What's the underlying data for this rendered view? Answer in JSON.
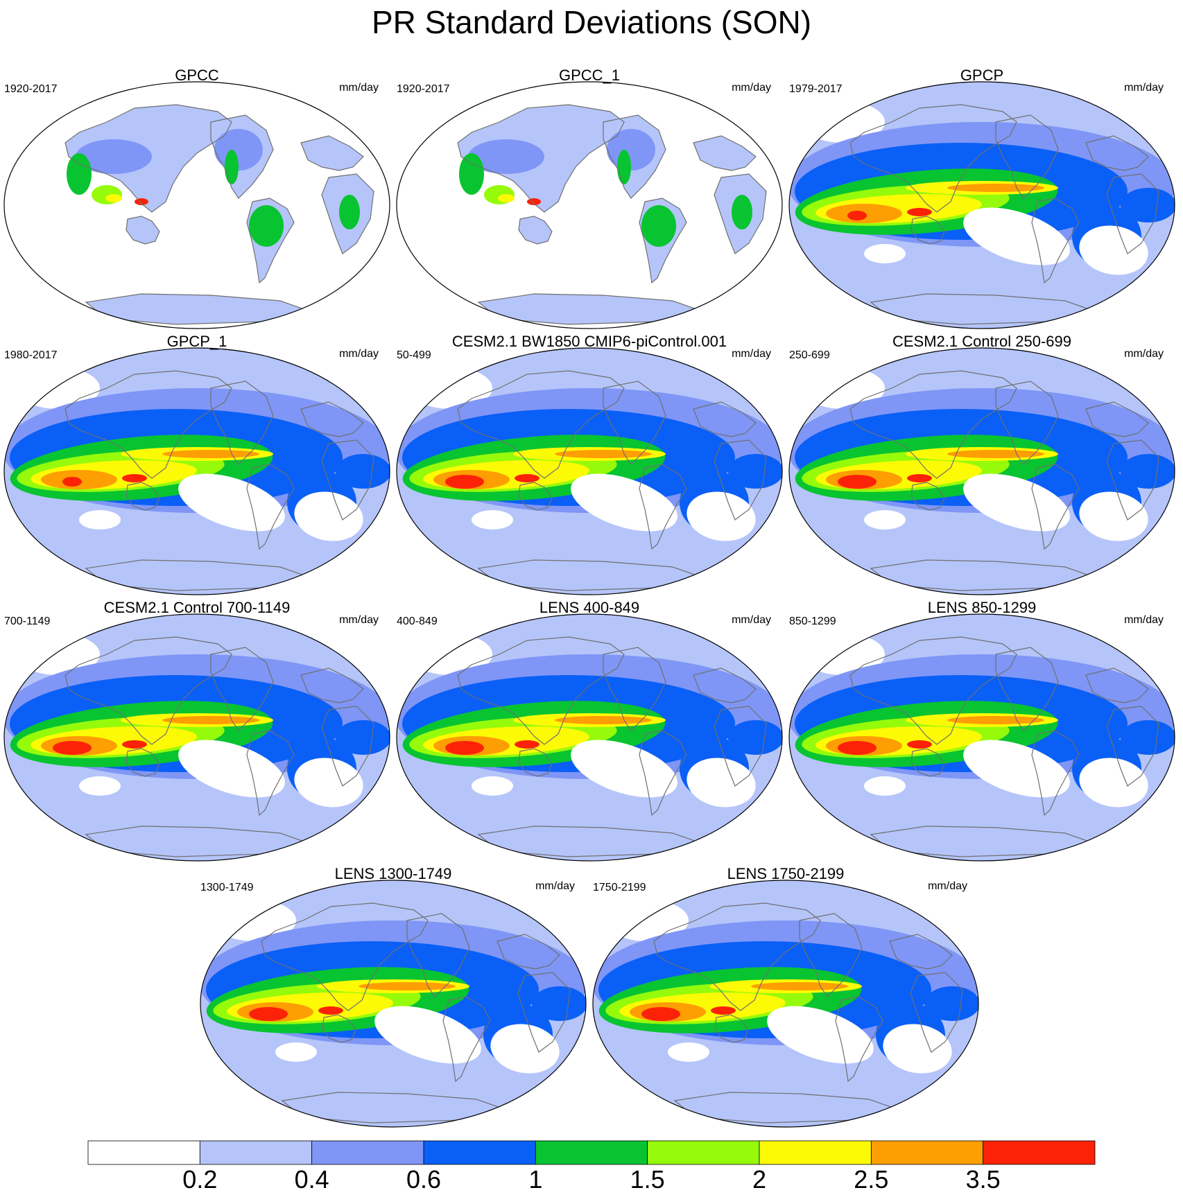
{
  "title": "PR Standard Deviations (SON)",
  "panels": [
    {
      "title": "GPCC",
      "period": "1920-2017",
      "units": "mm/day",
      "kind": "land"
    },
    {
      "title": "GPCC_1",
      "period": "1920-2017",
      "units": "mm/day",
      "kind": "land"
    },
    {
      "title": "GPCP",
      "period": "1979-2017",
      "units": "mm/day",
      "kind": "obs"
    },
    {
      "title": "GPCP_1",
      "period": "1980-2017",
      "units": "mm/day",
      "kind": "obs"
    },
    {
      "title": "CESM2.1 BW1850 CMIP6-piControl.001",
      "period": "50-499",
      "units": "mm/day",
      "kind": "model"
    },
    {
      "title": "CESM2.1 Control 250-699",
      "period": "250-699",
      "units": "mm/day",
      "kind": "model"
    },
    {
      "title": "CESM2.1 Control 700-1149",
      "period": "700-1149",
      "units": "mm/day",
      "kind": "model"
    },
    {
      "title": "LENS 400-849",
      "period": "400-849",
      "units": "mm/day",
      "kind": "model"
    },
    {
      "title": "LENS 850-1299",
      "period": "850-1299",
      "units": "mm/day",
      "kind": "model"
    },
    {
      "title": "LENS 1300-1749",
      "period": "1300-1749",
      "units": "mm/day",
      "kind": "model"
    },
    {
      "title": "LENS 1750-2199",
      "period": "1750-2199",
      "units": "mm/day",
      "kind": "model"
    }
  ],
  "colorbar": {
    "labels": [
      "0.2",
      "0.4",
      "0.6",
      "1",
      "1.5",
      "2",
      "2.5",
      "3.5"
    ],
    "colors": [
      "#ffffff",
      "#b5c5fa",
      "#7f96f6",
      "#0a5ff6",
      "#08c431",
      "#96fb0a",
      "#fdfa05",
      "#fd9e03",
      "#fb2208"
    ]
  }
}
